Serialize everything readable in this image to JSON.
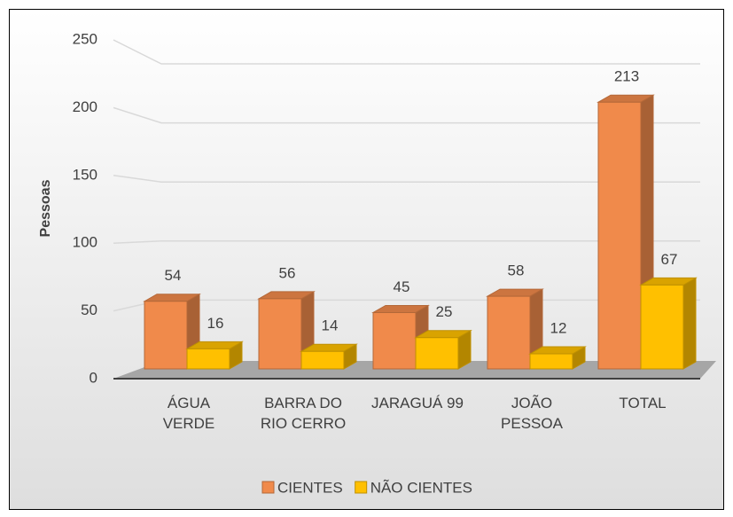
{
  "chart_data": {
    "type": "bar",
    "y_label": "Pessoas",
    "categories": [
      "ÁGUA VERDE",
      "BARRA DO RIO CERRO",
      "JARAGUÁ 99",
      "JOÃO PESSOA",
      "TOTAL"
    ],
    "series": [
      {
        "name": "CIENTES",
        "color": "#f08a4b",
        "values": [
          54,
          56,
          45,
          58,
          213
        ]
      },
      {
        "name": "NÃO CIENTES",
        "color": "#ffc000",
        "values": [
          16,
          14,
          25,
          12,
          67
        ]
      }
    ],
    "ylim": [
      0,
      250
    ],
    "yticks": [
      0,
      50,
      100,
      150,
      200,
      250
    ],
    "grid": true,
    "legend": "bottom"
  }
}
